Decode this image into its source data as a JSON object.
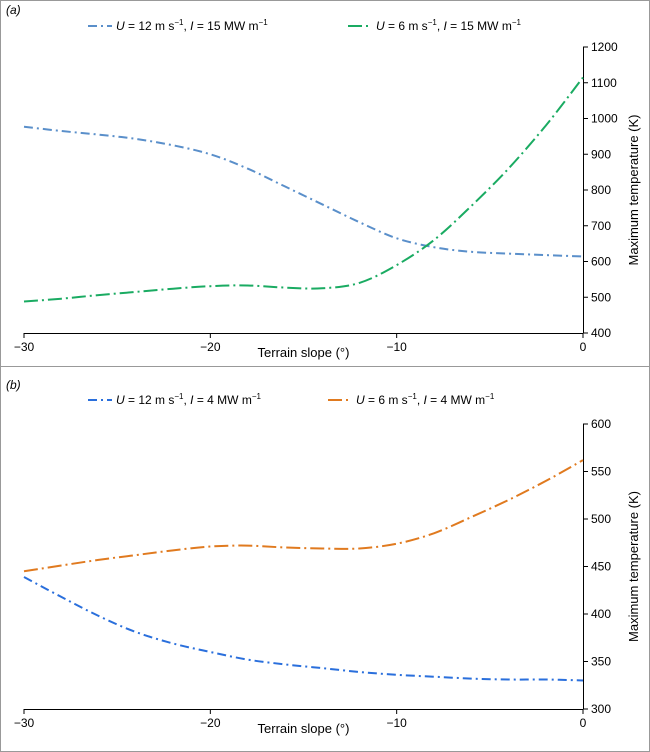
{
  "chart_data": [
    {
      "type": "line",
      "panel_label": "(a)",
      "xlabel": "Terrain slope (°)",
      "ylabel": "Maximum temperature (K)",
      "xlim": [
        -30,
        0
      ],
      "ylim": [
        400,
        1200
      ],
      "xticks": [
        -30,
        -20,
        -10,
        0
      ],
      "xtick_labels": [
        "−30",
        "−20",
        "−10",
        "0"
      ],
      "yticks": [
        400,
        500,
        600,
        700,
        800,
        900,
        1000,
        1100,
        1200
      ],
      "ytick_labels": [
        "400",
        "500",
        "600",
        "700",
        "800",
        "900",
        "1000",
        "1100",
        "1200"
      ],
      "legend_position": "top",
      "series": [
        {
          "name": "U = 12 m s−1, I = 15 MW m−1",
          "legend": {
            "u": "U",
            "u_val": " = 12 m s",
            "sup": "−1",
            "sep": ", ",
            "i": "I",
            "i_val": " = 15 MW m",
            "sup2": "−1"
          },
          "color": "#5a8fca",
          "style": "dash-dot",
          "x": [
            -30,
            -28,
            -26,
            -24,
            -22,
            -20,
            -18,
            -16,
            -14,
            -12,
            -10,
            -8,
            -6,
            -4,
            -2,
            0
          ],
          "y": [
            977,
            965,
            955,
            943,
            925,
            900,
            860,
            810,
            760,
            710,
            665,
            640,
            627,
            622,
            618,
            614
          ]
        },
        {
          "name": "U = 6 m s−1, I = 15 MW m−1",
          "legend": {
            "u": "U",
            "u_val": " = 6 m s",
            "sup": "−1",
            "sep": ", ",
            "i": "I",
            "i_val": " = 15 MW m",
            "sup2": "−1"
          },
          "color": "#1aab62",
          "style": "long-dash-dot",
          "x": [
            -30,
            -28,
            -26,
            -24,
            -22,
            -20,
            -18,
            -16,
            -14,
            -12,
            -10,
            -8,
            -6,
            -4,
            -2,
            0
          ],
          "y": [
            488,
            496,
            506,
            515,
            524,
            531,
            533,
            527,
            525,
            540,
            590,
            660,
            755,
            860,
            980,
            1115
          ]
        }
      ]
    },
    {
      "type": "line",
      "panel_label": "(b)",
      "xlabel": "Terrain slope (°)",
      "ylabel": "Maximum temperature (K)",
      "xlim": [
        -30,
        0
      ],
      "ylim": [
        300,
        600
      ],
      "xticks": [
        -30,
        -20,
        -10,
        0
      ],
      "xtick_labels": [
        "−30",
        "−20",
        "−10",
        "0"
      ],
      "yticks": [
        300,
        350,
        400,
        450,
        500,
        550,
        600
      ],
      "ytick_labels": [
        "300",
        "350",
        "400",
        "450",
        "500",
        "550",
        "600"
      ],
      "legend_position": "top",
      "series": [
        {
          "name": "U = 12 m s−1, I = 4 MW m−1",
          "legend": {
            "u": "U",
            "u_val": " = 12 m s",
            "sup": "−1",
            "sep": ", ",
            "i": "I",
            "i_val": " = 4 MW m",
            "sup2": "−1"
          },
          "color": "#2a6fdc",
          "style": "dash-dot",
          "x": [
            -30,
            -28,
            -26,
            -24,
            -22,
            -20,
            -18,
            -16,
            -14,
            -12,
            -10,
            -8,
            -6,
            -4,
            -2,
            0
          ],
          "y": [
            439,
            418,
            398,
            381,
            369,
            360,
            352,
            347,
            343,
            339,
            336,
            334,
            332,
            331,
            331,
            330
          ]
        },
        {
          "name": "U = 6 m s−1, I = 4 MW m−1",
          "legend": {
            "u": "U",
            "u_val": " = 6 m s",
            "sup": "−1",
            "sep": ", ",
            "i": "I",
            "i_val": " = 4 MW m",
            "sup2": "−1"
          },
          "color": "#e07a1f",
          "style": "long-dash-dot",
          "x": [
            -30,
            -28,
            -26,
            -24,
            -22,
            -20,
            -18,
            -16,
            -14,
            -12,
            -10,
            -8,
            -6,
            -4,
            -2,
            0
          ],
          "y": [
            445,
            451,
            457,
            462,
            467,
            471,
            472,
            470,
            469,
            469,
            474,
            485,
            502,
            520,
            540,
            562
          ]
        }
      ]
    }
  ]
}
